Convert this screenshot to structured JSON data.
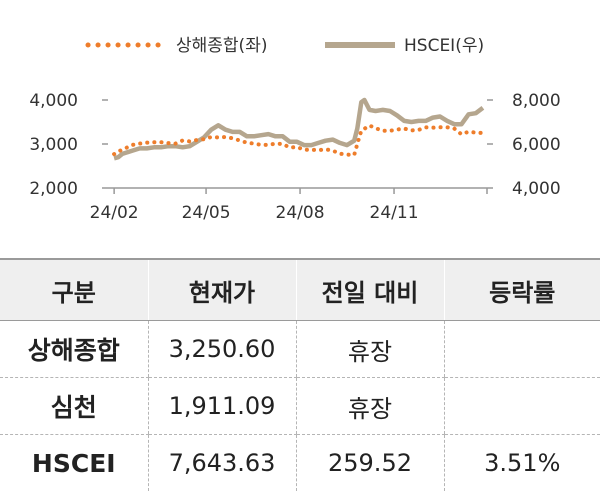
{
  "chart_data": {
    "type": "line",
    "legend": [
      {
        "name": "상해종합(좌)",
        "style": "dotted",
        "color": "#ee7d2b"
      },
      {
        "name": "HSCEI(우)",
        "style": "solid",
        "color": "#b5a68e"
      }
    ],
    "legend_position": "top-center",
    "x_ticks": [
      "24/02",
      "24/05",
      "24/08",
      "24/11"
    ],
    "y_left": {
      "ticks": [
        "2,000",
        "3,000",
        "4,000"
      ],
      "range": [
        2000,
        4000
      ]
    },
    "y_right": {
      "ticks": [
        "4,000",
        "6,000",
        "8,000"
      ],
      "range": [
        4000,
        8000
      ]
    },
    "grid": false,
    "series": [
      {
        "name": "상해종합(좌)",
        "axis": "left",
        "x": [
          "2024-02-01",
          "2024-02-05",
          "2024-02-09",
          "2024-02-19",
          "2024-02-26",
          "2024-03-04",
          "2024-03-11",
          "2024-03-18",
          "2024-03-25",
          "2024-04-01",
          "2024-04-08",
          "2024-04-15",
          "2024-04-22",
          "2024-04-29",
          "2024-05-06",
          "2024-05-13",
          "2024-05-20",
          "2024-05-27",
          "2024-06-03",
          "2024-06-10",
          "2024-06-17",
          "2024-06-24",
          "2024-07-01",
          "2024-07-08",
          "2024-07-15",
          "2024-07-22",
          "2024-07-29",
          "2024-08-05",
          "2024-08-12",
          "2024-08-19",
          "2024-08-26",
          "2024-09-02",
          "2024-09-09",
          "2024-09-16",
          "2024-09-23",
          "2024-09-26",
          "2024-09-30",
          "2024-10-08",
          "2024-10-14",
          "2024-10-21",
          "2024-10-28",
          "2024-11-04",
          "2024-11-11",
          "2024-11-18",
          "2024-11-25",
          "2024-12-02",
          "2024-12-09",
          "2024-12-16",
          "2024-12-23",
          "2024-12-30",
          "2025-01-06",
          "2025-01-13",
          "2025-01-20",
          "2025-01-27"
        ],
        "values": [
          2770,
          2830,
          2870,
          2980,
          3010,
          3030,
          3040,
          3040,
          3020,
          3010,
          3080,
          3060,
          3090,
          3110,
          3160,
          3150,
          3160,
          3130,
          3080,
          3030,
          3010,
          2980,
          2980,
          3010,
          3000,
          2920,
          2930,
          2870,
          2870,
          2860,
          2880,
          2850,
          2780,
          2760,
          2750,
          3000,
          3300,
          3420,
          3360,
          3300,
          3300,
          3330,
          3350,
          3310,
          3320,
          3380,
          3370,
          3380,
          3380,
          3350,
          3220,
          3280,
          3260,
          3250.6
        ]
      },
      {
        "name": "HSCEI(우)",
        "axis": "right",
        "x": [
          "2024-02-01",
          "2024-02-05",
          "2024-02-09",
          "2024-02-19",
          "2024-02-26",
          "2024-03-04",
          "2024-03-11",
          "2024-03-18",
          "2024-03-25",
          "2024-04-01",
          "2024-04-08",
          "2024-04-15",
          "2024-04-22",
          "2024-04-29",
          "2024-05-06",
          "2024-05-13",
          "2024-05-20",
          "2024-05-27",
          "2024-06-03",
          "2024-06-10",
          "2024-06-17",
          "2024-06-24",
          "2024-07-01",
          "2024-07-08",
          "2024-07-15",
          "2024-07-22",
          "2024-07-29",
          "2024-08-05",
          "2024-08-12",
          "2024-08-19",
          "2024-08-26",
          "2024-09-02",
          "2024-09-09",
          "2024-09-16",
          "2024-09-23",
          "2024-09-26",
          "2024-09-30",
          "2024-10-03",
          "2024-10-08",
          "2024-10-14",
          "2024-10-21",
          "2024-10-28",
          "2024-11-04",
          "2024-11-11",
          "2024-11-18",
          "2024-11-25",
          "2024-12-02",
          "2024-12-09",
          "2024-12-16",
          "2024-12-23",
          "2024-12-30",
          "2025-01-06",
          "2025-01-13",
          "2025-01-20",
          "2025-01-27"
        ],
        "values": [
          5350,
          5400,
          5550,
          5700,
          5800,
          5800,
          5850,
          5850,
          5900,
          5900,
          5850,
          5900,
          6100,
          6300,
          6650,
          6850,
          6650,
          6550,
          6550,
          6350,
          6350,
          6400,
          6450,
          6350,
          6350,
          6100,
          6100,
          5950,
          5950,
          6050,
          6150,
          6200,
          6050,
          5950,
          6150,
          6700,
          7900,
          8000,
          7550,
          7500,
          7550,
          7500,
          7300,
          7050,
          7000,
          7050,
          7050,
          7200,
          7250,
          7050,
          6900,
          6900,
          7350,
          7400,
          7643.63
        ]
      }
    ]
  },
  "table": {
    "headers": [
      "구분",
      "현재가",
      "전일 대비",
      "등락률"
    ],
    "rows": [
      [
        "상해종합",
        "3,250.60",
        "휴장",
        ""
      ],
      [
        "심천",
        "1,911.09",
        "휴장",
        ""
      ],
      [
        "HSCEI",
        "7,643.63",
        "259.52",
        "3.51%"
      ]
    ]
  }
}
